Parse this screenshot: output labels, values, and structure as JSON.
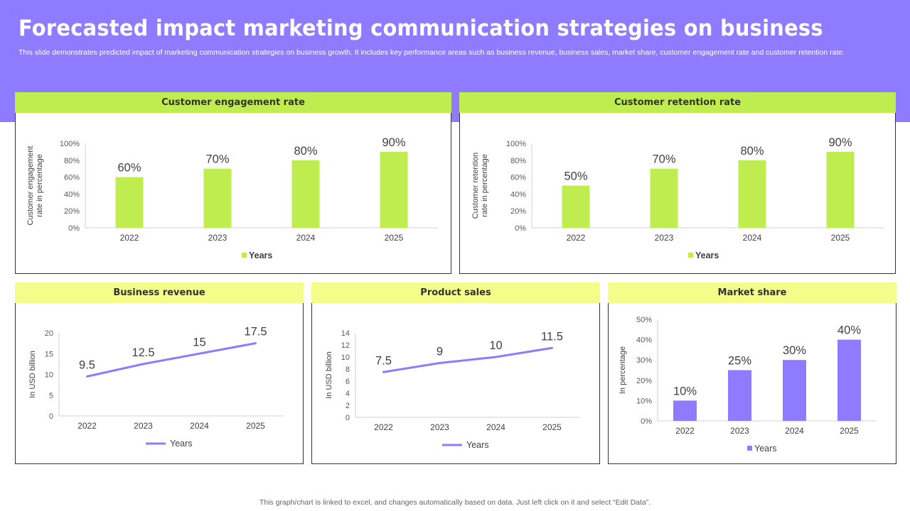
{
  "header": {
    "title": "Forecasted impact marketing communication strategies on business",
    "subtitle": "This slide demonstrates predicted impact of marketing communication strategies on business growth. It includes key performance areas such as business revenue, business sales, market share, customer engagement rate and customer retention rate."
  },
  "footer": {
    "note": "This graph/chart is linked to excel,  and changes automatically based on data. Just left click on it and select “Edit Data”."
  },
  "colors": {
    "band": "#8f7bff",
    "green_bar": "#bfed50",
    "purple": "#8f7bff",
    "head_green": "#bfed50",
    "head_yellow": "#f4fc8a"
  },
  "chart_data": [
    {
      "id": "engagement",
      "type": "bar",
      "title": "Customer engagement rate",
      "categories": [
        "2022",
        "2023",
        "2024",
        "2025"
      ],
      "values": [
        60,
        70,
        80,
        90
      ],
      "value_labels": [
        "60%",
        "70%",
        "80%",
        "90%"
      ],
      "ylabel": "Customer engagement rate in percentage",
      "ylim": [
        0,
        100
      ],
      "yticks": [
        "0%",
        "20%",
        "40%",
        "60%",
        "80%",
        "100%"
      ],
      "legend": "Years",
      "legend_position": "bottom",
      "color": "#bfed50",
      "grid": false
    },
    {
      "id": "retention",
      "type": "bar",
      "title": "Customer retention rate",
      "categories": [
        "2022",
        "2023",
        "2024",
        "2025"
      ],
      "values": [
        50,
        70,
        80,
        90
      ],
      "value_labels": [
        "50%",
        "70%",
        "80%",
        "90%"
      ],
      "ylabel": "Customer retention rate in percentage",
      "ylim": [
        0,
        100
      ],
      "yticks": [
        "0%",
        "20%",
        "40%",
        "60%",
        "80%",
        "100%"
      ],
      "legend": "Years",
      "legend_position": "bottom",
      "color": "#bfed50",
      "grid": false
    },
    {
      "id": "revenue",
      "type": "line",
      "title": "Business revenue",
      "categories": [
        "2022",
        "2023",
        "2024",
        "2025"
      ],
      "values": [
        9.5,
        12.5,
        15,
        17.5
      ],
      "value_labels": [
        "9.5",
        "12.5",
        "15",
        "17.5"
      ],
      "ylabel": "In USD billion",
      "ylim": [
        0,
        20
      ],
      "yticks": [
        "0",
        "5",
        "10",
        "15",
        "20"
      ],
      "legend": "Years",
      "legend_position": "bottom",
      "color": "#8f7bff",
      "grid": false
    },
    {
      "id": "sales",
      "type": "line",
      "title": "Product sales",
      "categories": [
        "2022",
        "2023",
        "2024",
        "2025"
      ],
      "values": [
        7.5,
        9,
        10,
        11.5
      ],
      "value_labels": [
        "7.5",
        "9",
        "10",
        "11.5"
      ],
      "ylabel": "In USD billion",
      "ylim": [
        0,
        14
      ],
      "yticks": [
        "0",
        "2",
        "4",
        "6",
        "8",
        "10",
        "12",
        "14"
      ],
      "legend": "Years",
      "legend_position": "bottom",
      "color": "#8f7bff",
      "grid": false
    },
    {
      "id": "market",
      "type": "bar",
      "title": "Market share",
      "categories": [
        "2022",
        "2023",
        "2024",
        "2025"
      ],
      "values": [
        10,
        25,
        30,
        40
      ],
      "value_labels": [
        "10%",
        "25%",
        "30%",
        "40%"
      ],
      "ylabel": "In percentage",
      "ylim": [
        0,
        50
      ],
      "yticks": [
        "0%",
        "10%",
        "20%",
        "30%",
        "40%",
        "50%"
      ],
      "legend": "Years",
      "legend_position": "bottom",
      "color": "#8f7bff",
      "grid": false
    }
  ]
}
